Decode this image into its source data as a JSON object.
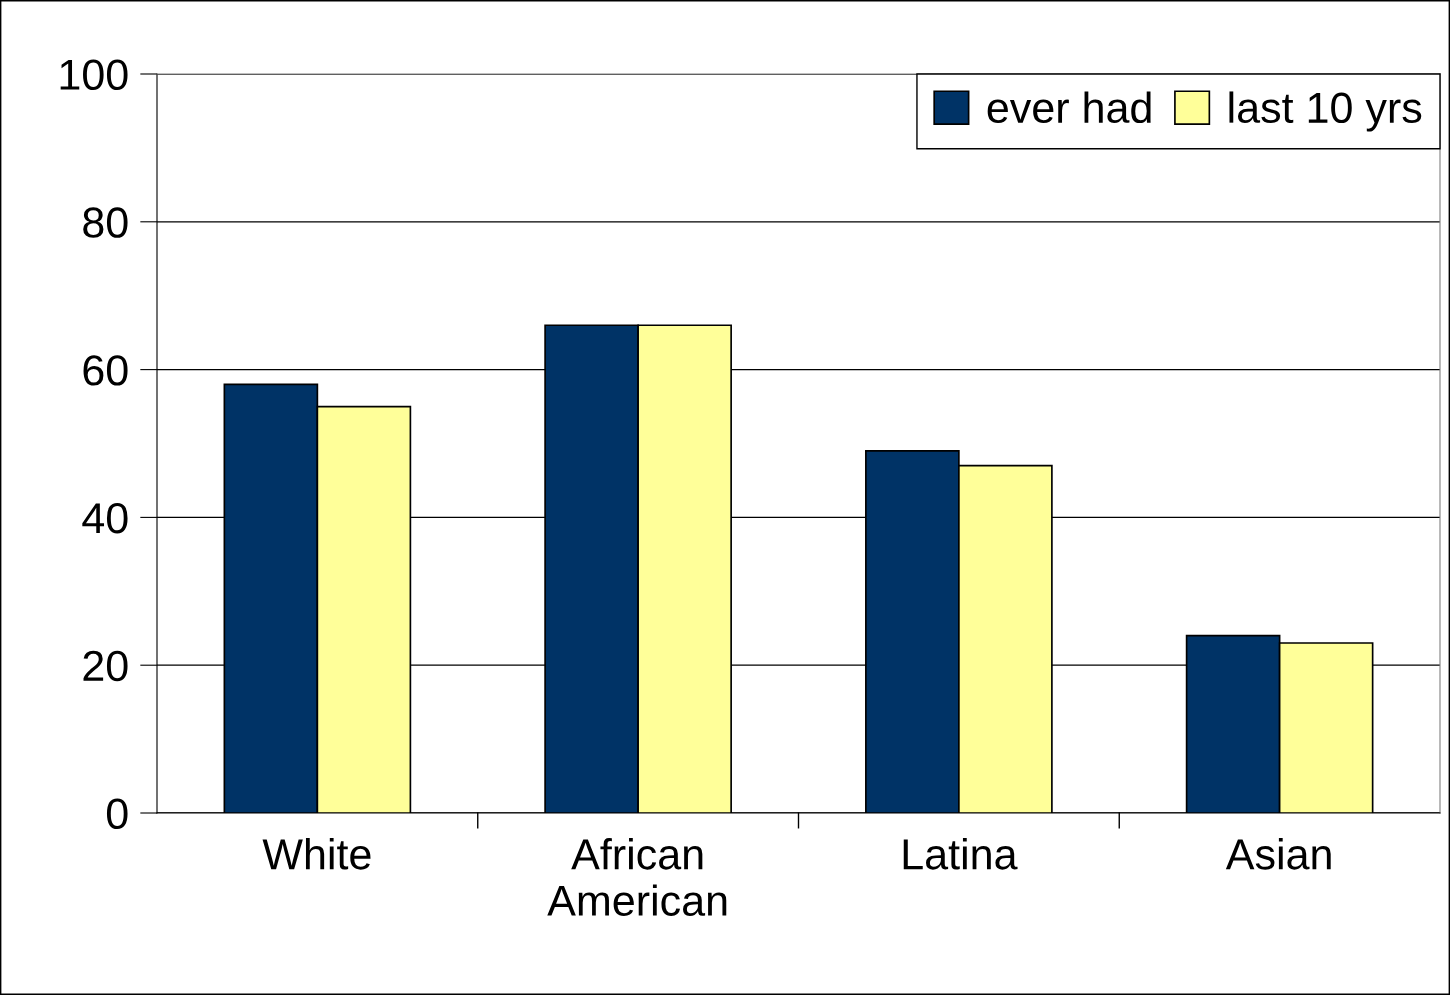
{
  "chart_data": {
    "type": "bar",
    "categories": [
      "White",
      "African\nAmerican",
      "Latina",
      "Asian"
    ],
    "series": [
      {
        "name": "ever had",
        "color": "#003366",
        "values": [
          58,
          66,
          49,
          24
        ]
      },
      {
        "name": "last 10 yrs",
        "color": "#ffff99",
        "values": [
          55,
          66,
          47,
          23
        ]
      }
    ],
    "ylim": [
      0,
      100
    ],
    "yticks": [
      0,
      20,
      40,
      60,
      80,
      100
    ],
    "grid": "y",
    "legend": "top right"
  }
}
